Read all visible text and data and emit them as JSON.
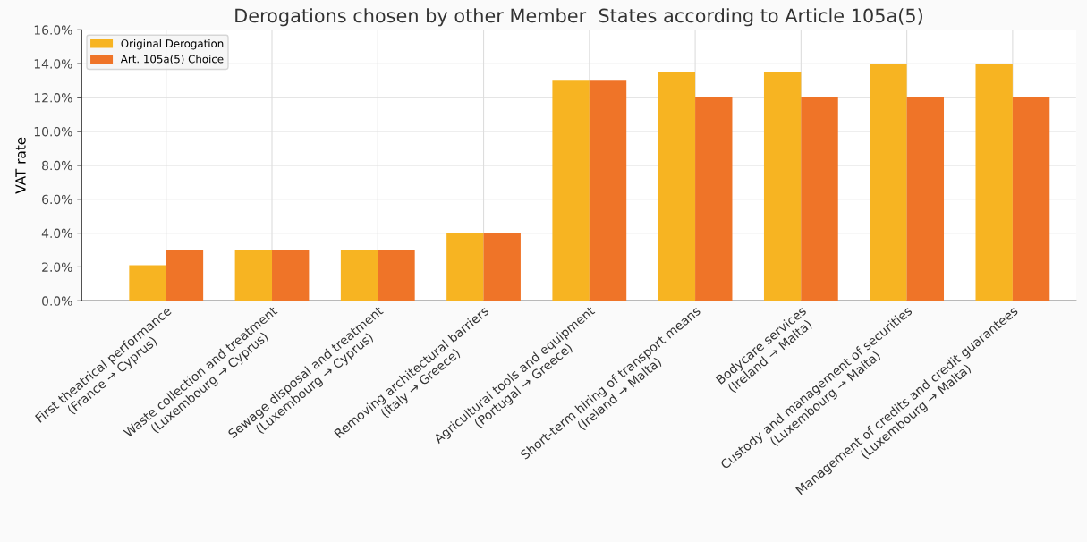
{
  "chart_data": {
    "type": "bar",
    "title": "Derogations chosen by other Member  States according to Article 105a(5)",
    "ylabel": "VAT rate",
    "categories": [
      "First theatrical performance\n(France → Cyprus)",
      "Waste collection and treatment\n(Luxembourg → Cyprus)",
      "Sewage disposal and treatment\n(Luxembourg → Cyprus)",
      "Removing architectural barriers\n(Italy → Greece)",
      "Agricultural tools and equipment\n(Portugal → Greece)",
      "Short-term hiring of transport means\n(Ireland → Malta)",
      "Bodycare services\n(Ireland → Malta)",
      "Custody and management of securities\n(Luxembourg → Malta)",
      "Management of credits and credit guarantees\n(Luxembourg → Malta)"
    ],
    "series": [
      {
        "name": "Original Derogation",
        "color": "#f7b422",
        "values": [
          2.1,
          3,
          3,
          4,
          13,
          13.5,
          13.5,
          14,
          14
        ]
      },
      {
        "name": "Art. 105a(5) Choice",
        "color": "#ef7428",
        "values": [
          3,
          3,
          3,
          4,
          13,
          12,
          12,
          12,
          12
        ]
      }
    ],
    "ylim": [
      0,
      16
    ],
    "yticks": [
      {
        "value": 0,
        "label": "0.0%"
      },
      {
        "value": 2,
        "label": "2.0%"
      },
      {
        "value": 4,
        "label": "4.0%"
      },
      {
        "value": 6,
        "label": "6.0%"
      },
      {
        "value": 8,
        "label": "8.0%"
      },
      {
        "value": 10,
        "label": "10.0%"
      },
      {
        "value": 12,
        "label": "12.0%"
      },
      {
        "value": 14,
        "label": "14.0%"
      },
      {
        "value": 16,
        "label": "16.0%"
      }
    ],
    "grid": true,
    "legend": "top left"
  }
}
